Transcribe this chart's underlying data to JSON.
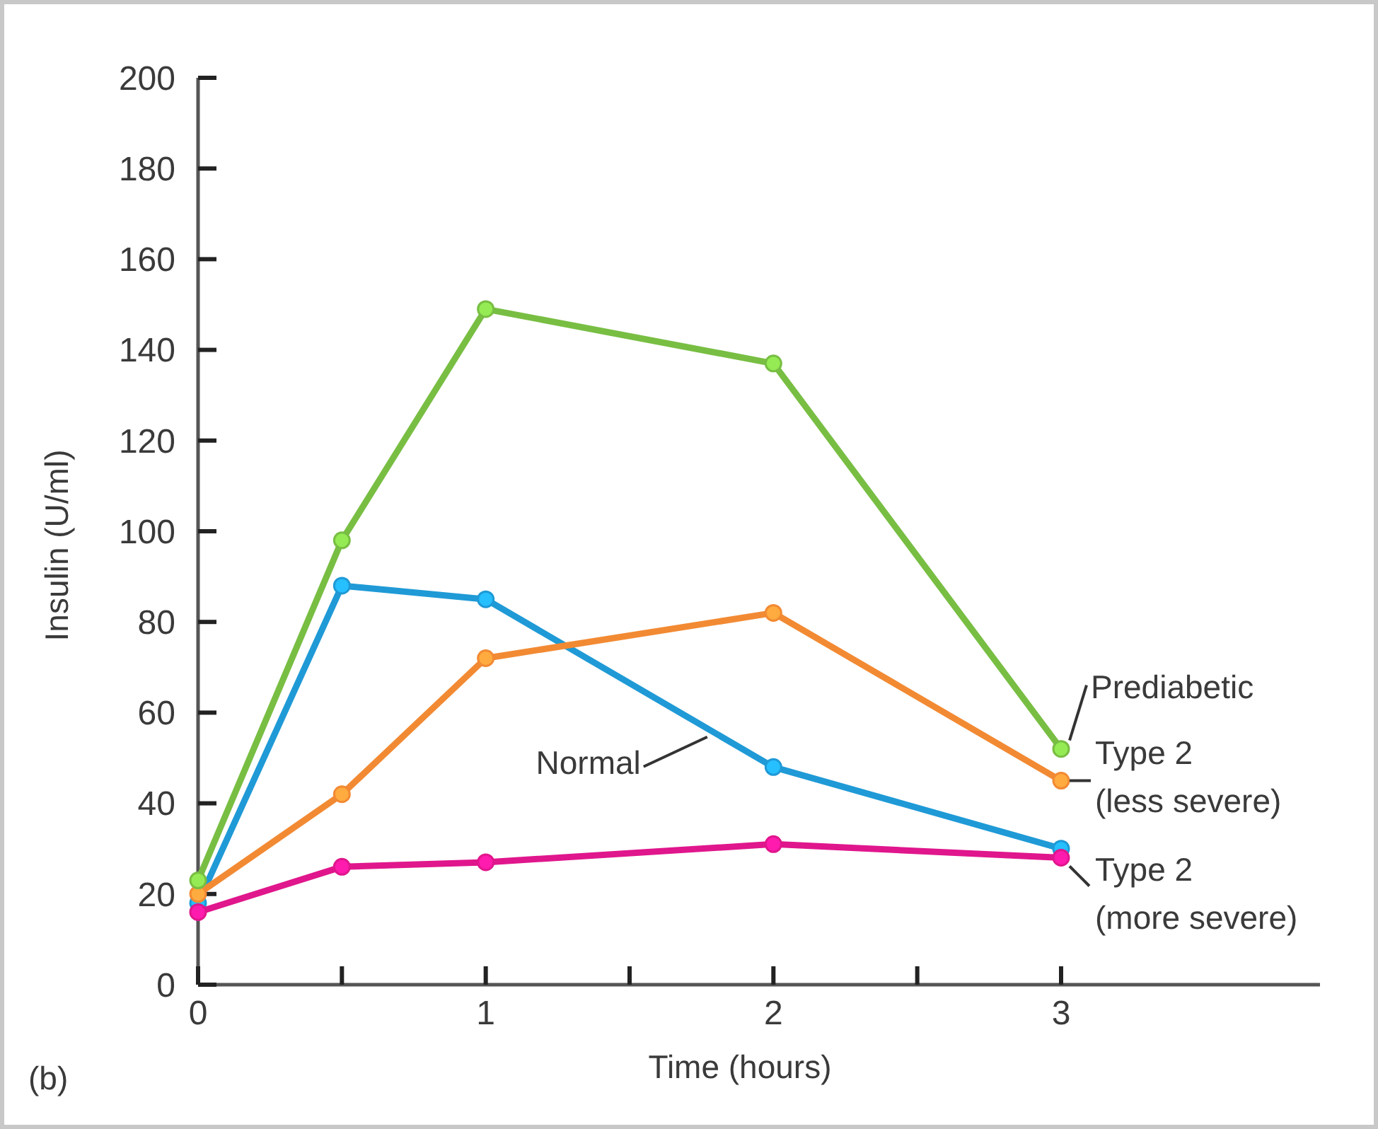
{
  "chart_data": {
    "type": "line",
    "xlabel": "Time (hours)",
    "ylabel": "Insulin (U/ml)",
    "x": [
      0,
      0.5,
      1,
      2,
      3
    ],
    "series": [
      {
        "name": "Normal",
        "color": "#1f9ad6",
        "values": [
          18,
          88,
          85,
          48,
          30
        ]
      },
      {
        "name": "Prediabetic",
        "color": "#78be43",
        "values": [
          23,
          98,
          149,
          137,
          52
        ]
      },
      {
        "name": "Type 2 (less severe)",
        "color": "#f28a33",
        "values": [
          20,
          42,
          72,
          82,
          45
        ]
      },
      {
        "name": "Type 2 (more severe)",
        "color": "#e0168c",
        "values": [
          16,
          26,
          27,
          31,
          28
        ]
      }
    ],
    "xlim": [
      0,
      3.9
    ],
    "xticks": [
      0,
      {
        "value": 0.5,
        "label": null
      },
      1,
      {
        "value": 1.5,
        "label": null
      },
      2,
      {
        "value": 2.5,
        "label": null
      },
      3
    ],
    "ylim": [
      0,
      200
    ],
    "yticks": [
      0,
      20,
      40,
      60,
      80,
      100,
      120,
      140,
      160,
      180,
      200
    ],
    "annotations": [
      "(b)"
    ],
    "marker": "circle",
    "line_style": "solid",
    "grid": false,
    "legend": false
  }
}
